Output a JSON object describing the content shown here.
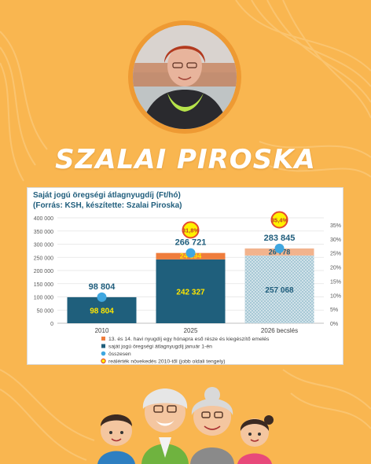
{
  "person_name": "SZALAI PIROSKA",
  "chart_data": {
    "type": "bar",
    "title": "Saját jogú öregségi átlagnyugdíj (Ft/hó)",
    "subtitle": "(Forrás: KSH, készítette: Szalai Piroska)",
    "categories": [
      "2010",
      "2025",
      "2026 becslés"
    ],
    "ylim": [
      0,
      400000
    ],
    "y2lim": [
      0,
      35
    ],
    "y_ticks": [
      "0",
      "50 000",
      "100 000",
      "150 000",
      "200 000",
      "250 000",
      "300 000",
      "350 000",
      "400 000"
    ],
    "y2_ticks": [
      "0%",
      "5%",
      "10%",
      "15%",
      "20%",
      "25%",
      "30%",
      "35%"
    ],
    "series": [
      {
        "name": "saját jogú öregségi átlagnyugdíj január 1-én",
        "type": "bar",
        "values": [
          98804,
          242327,
          257068
        ],
        "labels": [
          "98 804",
          "242 327",
          "257 068"
        ]
      },
      {
        "name": "13. és 14. havi nyugdíj egy hónapra eső része és kiegészítő emelés",
        "type": "bar",
        "values": [
          0,
          24394,
          26778
        ],
        "labels": [
          "",
          "24 394",
          "26 778"
        ]
      },
      {
        "name": "összesen",
        "type": "point",
        "values": [
          98804,
          266721,
          283845
        ],
        "labels": [
          "98 804",
          "266 721",
          "283 845"
        ]
      },
      {
        "name": "reálérték növekedés 2010-től (jobb oldali tengely)",
        "type": "point",
        "axis": "right",
        "values": [
          null,
          31.8,
          35.4
        ],
        "labels": [
          "",
          "31,8%",
          "35,4%"
        ]
      }
    ],
    "colors": {
      "base": "#1f5f7c",
      "base_estimate": "#9fc3d1",
      "extra": "#ef7d3c",
      "total_marker": "#3fa7e0",
      "growth_marker_fill": "#fff200",
      "growth_marker_ring": "#e64b2f",
      "label_dark": "#1f5d7c",
      "label_light": "#ffe600"
    },
    "legend": [
      "13. és 14. havi nyugdíj egy hónapra eső része és kiegészítő emelés",
      "saját jogú öregségi átlagnyugdíj január 1-én",
      "összesen",
      "reálérték növekedés 2010-től (jobb oldali tengely)"
    ],
    "legend_position": "bottom",
    "grid": true
  }
}
